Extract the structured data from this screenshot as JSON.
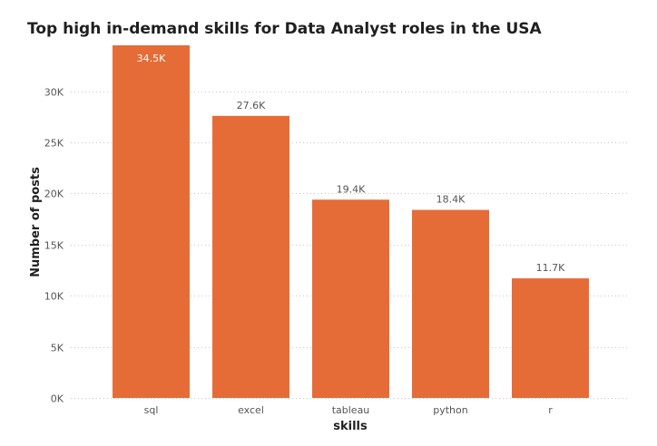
{
  "chart_data": {
    "type": "bar",
    "title": "Top high in-demand skills for Data Analyst roles in the USA",
    "xlabel": "skills",
    "ylabel": "Number of posts",
    "categories": [
      "sql",
      "excel",
      "tableau",
      "python",
      "r"
    ],
    "values": [
      34500,
      27600,
      19400,
      18400,
      11700
    ],
    "data_labels": [
      "34.5K",
      "27.6K",
      "19.4K",
      "18.4K",
      "11.7K"
    ],
    "yticks": [
      0,
      5000,
      10000,
      15000,
      20000,
      25000,
      30000
    ],
    "ytick_labels": [
      "0K",
      "5K",
      "10K",
      "15K",
      "20K",
      "25K",
      "30K"
    ],
    "ylim": [
      0,
      34500
    ],
    "grid": true,
    "bar_color": "#E66C37"
  }
}
